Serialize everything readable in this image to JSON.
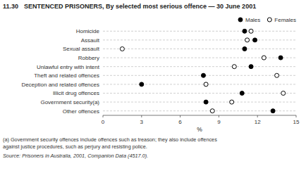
{
  "chart_data": {
    "type": "dot",
    "title": "SENTENCED PRISONERS, By selected most serious offence — 30 June 2001",
    "annotations": [
      "11.30",
      "(a) Government security offences include offences such as treason; they also include offences",
      "against justice procedures, such as perjury and resisting police.",
      "Source:  Prisoners in Australia, 2001, Companion Data (4517.0)."
    ],
    "categories": [
      "Homicide",
      "Assault",
      "Sexual assault",
      "Robbery",
      "Unlawful entry with intent",
      "Theft and related offences",
      "Deception and related offences",
      "Illicit drug offences",
      "Government security(a)",
      "Other offences"
    ],
    "series": [
      {
        "name": "Males",
        "color": "#000000",
        "marker": "circle",
        "values": [
          11.0,
          11.8,
          11.0,
          13.8,
          11.5,
          7.8,
          3.0,
          10.8,
          8.0,
          13.2
        ]
      },
      {
        "name": "Females",
        "color": "#000000",
        "marker": "open-circle",
        "values": [
          11.5,
          11.2,
          1.5,
          12.5,
          10.2,
          13.5,
          8.0,
          14.0,
          10.0,
          8.5
        ]
      }
    ],
    "xlabel": "%",
    "xlim": [
      0,
      15
    ],
    "xticks": [
      0,
      3,
      6,
      9,
      12,
      15
    ],
    "grid": true,
    "legend": "upper right"
  }
}
